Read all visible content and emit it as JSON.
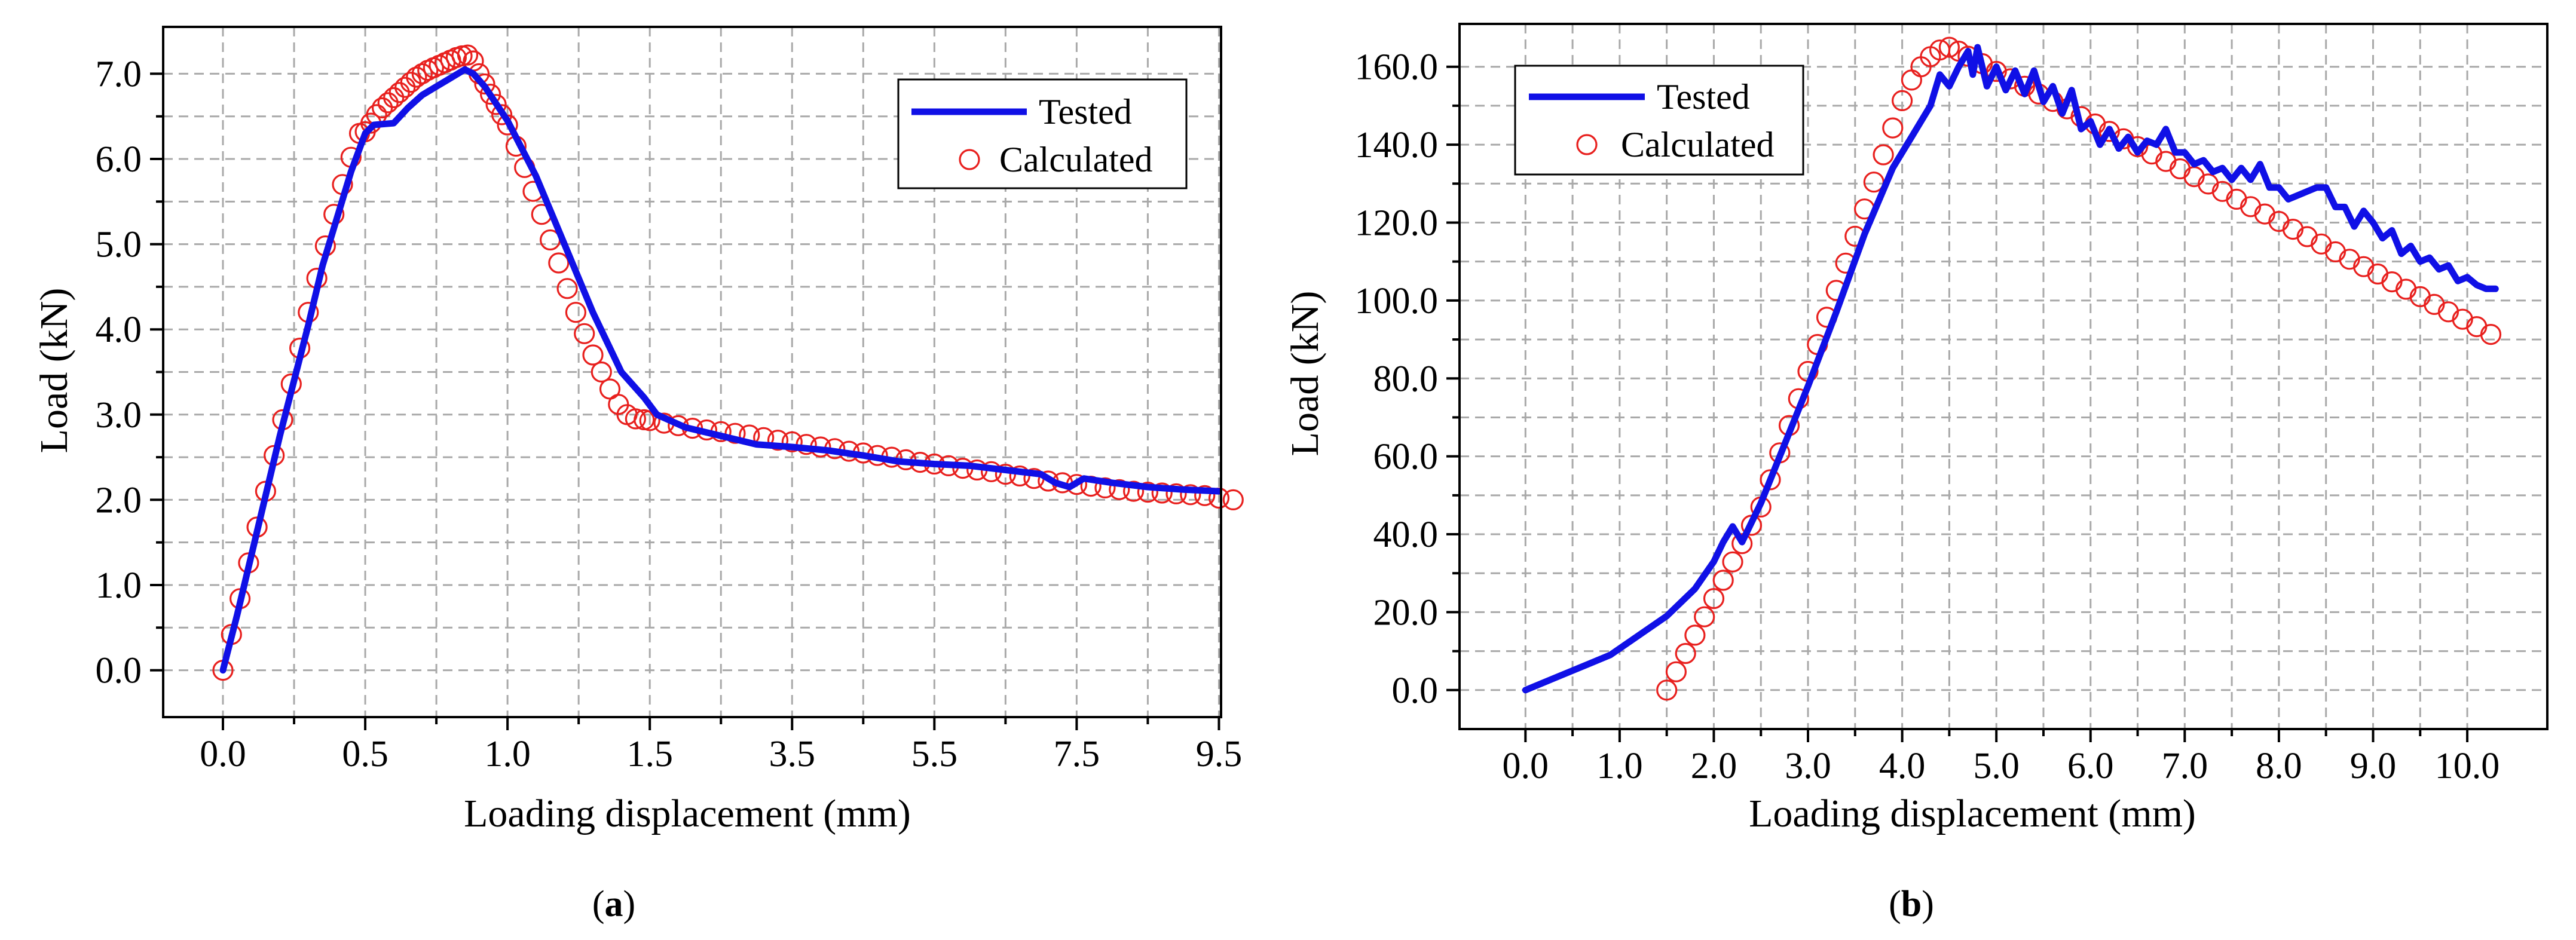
{
  "chart_data": [
    {
      "id": "a",
      "type": "line",
      "caption_letter": "a",
      "xlabel": "Loading displacement (mm)",
      "ylabel": "Load (kN)",
      "x_tick_labels": [
        "0.0",
        "0.5",
        "1.0",
        "1.5",
        "3.5",
        "5.5",
        "7.5",
        "9.5"
      ],
      "y_tick_labels": [
        "0.0",
        "1.0",
        "2.0",
        "3.0",
        "4.0",
        "5.0",
        "6.0",
        "7.0"
      ],
      "ylim": [
        -0.55,
        7.55
      ],
      "grid": true,
      "legend_position": "top-right",
      "x_axis_note": "piecewise scale: 0 to 1.5 mm with 0.5 mm ticks, then 1.5 to 9.5 mm with 2.0 mm ticks",
      "series": [
        {
          "name": "Tested",
          "style": "line",
          "color": "#1010e6",
          "x": [
            0.0,
            0.05,
            0.1,
            0.15,
            0.2,
            0.25,
            0.3,
            0.35,
            0.4,
            0.45,
            0.5,
            0.53,
            0.6,
            0.65,
            0.7,
            0.75,
            0.8,
            0.85,
            0.88,
            0.92,
            1.0,
            1.1,
            1.2,
            1.3,
            1.4,
            1.48,
            1.6,
            2.0,
            2.5,
            3.0,
            3.5,
            4.0,
            4.5,
            5.0,
            5.5,
            6.0,
            6.5,
            7.0,
            7.2,
            7.4,
            7.6,
            8.0,
            8.5,
            9.0,
            9.5
          ],
          "y": [
            0.0,
            0.65,
            1.35,
            2.05,
            2.75,
            3.4,
            4.05,
            4.75,
            5.3,
            5.85,
            6.3,
            6.4,
            6.42,
            6.6,
            6.75,
            6.85,
            6.95,
            7.05,
            7.0,
            6.85,
            6.45,
            5.8,
            5.0,
            4.2,
            3.5,
            3.2,
            3.0,
            2.85,
            2.75,
            2.65,
            2.62,
            2.58,
            2.52,
            2.45,
            2.42,
            2.4,
            2.35,
            2.3,
            2.2,
            2.15,
            2.25,
            2.2,
            2.15,
            2.12,
            2.1
          ]
        },
        {
          "name": "Calculated",
          "style": "markers",
          "color": "#e8201e",
          "x": [
            0.0,
            0.03,
            0.06,
            0.09,
            0.12,
            0.15,
            0.18,
            0.21,
            0.24,
            0.27,
            0.3,
            0.33,
            0.36,
            0.39,
            0.42,
            0.45,
            0.48,
            0.5,
            0.52,
            0.54,
            0.56,
            0.58,
            0.6,
            0.62,
            0.64,
            0.66,
            0.68,
            0.7,
            0.72,
            0.74,
            0.76,
            0.78,
            0.8,
            0.82,
            0.84,
            0.86,
            0.88,
            0.9,
            0.92,
            0.94,
            0.96,
            0.98,
            1.0,
            1.03,
            1.06,
            1.09,
            1.12,
            1.15,
            1.18,
            1.21,
            1.24,
            1.27,
            1.3,
            1.33,
            1.36,
            1.39,
            1.42,
            1.45,
            1.48,
            1.5,
            1.7,
            1.9,
            2.1,
            2.3,
            2.5,
            2.7,
            2.9,
            3.1,
            3.3,
            3.5,
            3.7,
            3.9,
            4.1,
            4.3,
            4.5,
            4.7,
            4.9,
            5.1,
            5.3,
            5.5,
            5.7,
            5.9,
            6.1,
            6.3,
            6.5,
            6.7,
            6.9,
            7.1,
            7.3,
            7.5,
            7.7,
            7.9,
            8.1,
            8.3,
            8.5,
            8.7,
            8.9,
            9.1,
            9.3,
            9.5,
            9.7
          ],
          "y": [
            0.0,
            0.42,
            0.84,
            1.26,
            1.68,
            2.1,
            2.52,
            2.94,
            3.36,
            3.78,
            4.2,
            4.6,
            4.98,
            5.35,
            5.7,
            6.02,
            6.3,
            6.32,
            6.42,
            6.52,
            6.6,
            6.66,
            6.72,
            6.78,
            6.84,
            6.9,
            6.96,
            7.0,
            7.04,
            7.07,
            7.1,
            7.13,
            7.16,
            7.19,
            7.21,
            7.22,
            7.15,
            7.0,
            6.88,
            6.76,
            6.64,
            6.52,
            6.4,
            6.15,
            5.9,
            5.62,
            5.35,
            5.05,
            4.78,
            4.48,
            4.2,
            3.95,
            3.7,
            3.5,
            3.3,
            3.12,
            3.0,
            2.95,
            2.94,
            2.93,
            2.9,
            2.87,
            2.84,
            2.82,
            2.8,
            2.78,
            2.76,
            2.73,
            2.7,
            2.68,
            2.65,
            2.62,
            2.6,
            2.57,
            2.55,
            2.52,
            2.5,
            2.47,
            2.44,
            2.42,
            2.4,
            2.37,
            2.35,
            2.33,
            2.3,
            2.28,
            2.25,
            2.22,
            2.2,
            2.18,
            2.16,
            2.14,
            2.12,
            2.1,
            2.09,
            2.08,
            2.07,
            2.06,
            2.05,
            2.02,
            2.0
          ]
        }
      ]
    },
    {
      "id": "b",
      "type": "line",
      "caption_letter": "b",
      "xlabel": "Loading displacement (mm)",
      "ylabel": "Load (kN)",
      "x_tick_labels": [
        "0.0",
        "1.0",
        "2.0",
        "3.0",
        "4.0",
        "5.0",
        "6.0",
        "7.0",
        "8.0",
        "9.0",
        "10.0"
      ],
      "y_tick_labels": [
        "0.0",
        "20.0",
        "40.0",
        "60.0",
        "80.0",
        "100.0",
        "120.0",
        "140.0",
        "160.0"
      ],
      "xlim": [
        -0.7,
        10.85
      ],
      "ylim": [
        -10.0,
        171.0
      ],
      "grid": true,
      "legend_position": "top-left",
      "series": [
        {
          "name": "Tested",
          "style": "line",
          "color": "#1010e6",
          "x": [
            0.0,
            0.3,
            0.6,
            0.9,
            1.2,
            1.5,
            1.8,
            2.0,
            2.1,
            2.2,
            2.3,
            2.5,
            2.7,
            3.0,
            3.3,
            3.6,
            3.9,
            4.1,
            4.3,
            4.4,
            4.5,
            4.6,
            4.7,
            4.75,
            4.8,
            4.9,
            5.0,
            5.1,
            5.2,
            5.3,
            5.4,
            5.5,
            5.6,
            5.7,
            5.8,
            5.9,
            6.0,
            6.1,
            6.2,
            6.3,
            6.4,
            6.5,
            6.6,
            6.7,
            6.8,
            6.9,
            7.0,
            7.1,
            7.2,
            7.3,
            7.4,
            7.5,
            7.6,
            7.7,
            7.8,
            7.9,
            8.0,
            8.1,
            8.2,
            8.3,
            8.4,
            8.5,
            8.6,
            8.7,
            8.8,
            8.9,
            9.0,
            9.1,
            9.2,
            9.3,
            9.4,
            9.5,
            9.6,
            9.7,
            9.8,
            9.9,
            10.0,
            10.1,
            10.2,
            10.3
          ],
          "y": [
            0.0,
            3.0,
            6.0,
            9.0,
            14.0,
            19.0,
            26.0,
            33.0,
            38.0,
            42.0,
            38.0,
            48.0,
            60.0,
            78.0,
            97.0,
            117.0,
            134.0,
            142.0,
            150.0,
            158.0,
            155.0,
            160.0,
            164.0,
            158.0,
            165.0,
            155.0,
            160.0,
            154.0,
            159.0,
            153.0,
            159.0,
            151.0,
            155.0,
            148.0,
            154.0,
            144.0,
            146.0,
            140.0,
            144.0,
            139.0,
            142.0,
            138.0,
            141.0,
            140.0,
            144.0,
            138.0,
            138.0,
            135.0,
            136.0,
            133.0,
            134.0,
            131.0,
            134.0,
            131.0,
            135.0,
            129.0,
            129.0,
            126.0,
            127.0,
            128.0,
            129.0,
            129.0,
            124.0,
            124.0,
            119.0,
            123.0,
            120.0,
            116.0,
            118.0,
            112.0,
            114.0,
            110.0,
            111.0,
            108.0,
            109.0,
            105.0,
            106.0,
            104.0,
            103.0,
            103.0
          ]
        },
        {
          "name": "Calculated",
          "style": "markers",
          "color": "#e8201e",
          "x": [
            1.5,
            1.6,
            1.7,
            1.8,
            1.9,
            2.0,
            2.1,
            2.2,
            2.3,
            2.4,
            2.5,
            2.6,
            2.7,
            2.8,
            2.9,
            3.0,
            3.1,
            3.2,
            3.3,
            3.4,
            3.5,
            3.6,
            3.7,
            3.8,
            3.9,
            4.0,
            4.1,
            4.2,
            4.3,
            4.4,
            4.5,
            4.6,
            4.7,
            4.85,
            5.0,
            5.15,
            5.3,
            5.45,
            5.6,
            5.75,
            5.9,
            6.05,
            6.2,
            6.35,
            6.5,
            6.65,
            6.8,
            6.95,
            7.1,
            7.25,
            7.4,
            7.55,
            7.7,
            7.85,
            8.0,
            8.15,
            8.3,
            8.45,
            8.6,
            8.75,
            8.9,
            9.05,
            9.2,
            9.35,
            9.5,
            9.65,
            9.8,
            9.95,
            10.1,
            10.25
          ],
          "y": [
            0.0,
            4.7,
            9.4,
            14.1,
            18.8,
            23.5,
            28.2,
            32.9,
            37.6,
            42.3,
            47.0,
            54.0,
            60.9,
            67.9,
            74.8,
            81.8,
            88.7,
            95.7,
            102.6,
            109.6,
            116.5,
            123.5,
            130.4,
            137.4,
            144.3,
            151.3,
            156.6,
            160.0,
            162.6,
            164.3,
            165.0,
            164.0,
            162.7,
            160.8,
            158.8,
            156.9,
            155.0,
            153.0,
            151.1,
            149.2,
            147.2,
            145.3,
            143.4,
            141.5,
            139.5,
            137.6,
            135.7,
            133.8,
            131.8,
            129.9,
            128.0,
            126.0,
            124.1,
            122.2,
            120.3,
            118.3,
            116.4,
            114.5,
            112.5,
            110.6,
            108.7,
            106.8,
            104.8,
            102.9,
            101.0,
            99.0,
            97.1,
            95.2,
            93.3,
            91.3
          ]
        }
      ]
    }
  ]
}
